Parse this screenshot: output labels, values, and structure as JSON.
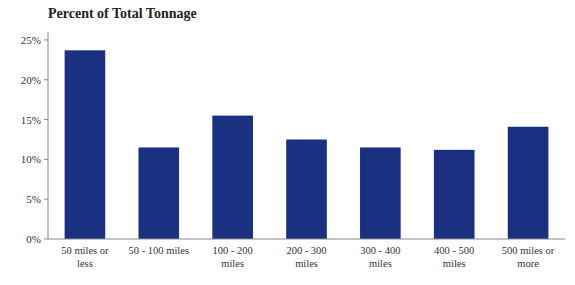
{
  "chart_data": {
    "type": "bar",
    "title": "Percent of Total Tonnage",
    "categories": [
      "50 miles or\nless",
      "50 - 100 miles",
      "100 - 200\nmiles",
      "200 - 300\nmiles",
      "300 - 400\nmiles",
      "400 - 500\nmiles",
      "500 miles or\nmore"
    ],
    "values": [
      23.7,
      11.5,
      15.5,
      12.5,
      11.5,
      11.2,
      14.1
    ],
    "color": "#1a3080",
    "ylim": [
      0,
      26
    ],
    "yticks": [
      {
        "value": 0,
        "label": "0%"
      },
      {
        "value": 5,
        "label": "5%"
      },
      {
        "value": 10,
        "label": "10%"
      },
      {
        "value": 15,
        "label": "15%"
      },
      {
        "value": 20,
        "label": "20%"
      },
      {
        "value": 25,
        "label": "25%"
      }
    ],
    "grid": false
  }
}
